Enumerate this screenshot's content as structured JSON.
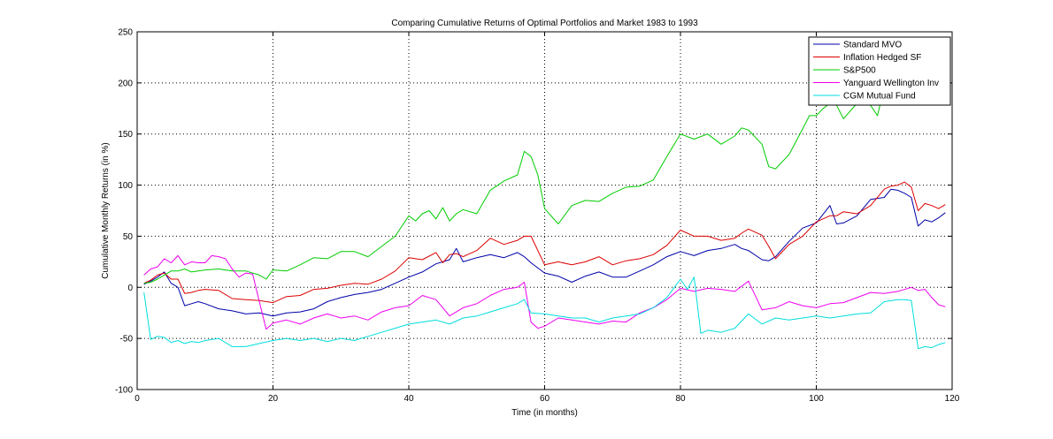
{
  "chart_data": {
    "type": "line",
    "title": "Comparing Cumulative Returns of Optimal Portfolios and Market 1983 to 1993",
    "xlabel": "Time (in months)",
    "ylabel": "Cumulative Monthly Returns (in %)",
    "xlim": [
      0,
      120
    ],
    "ylim": [
      -100,
      250
    ],
    "xticks": [
      0,
      20,
      40,
      60,
      80,
      100,
      120
    ],
    "yticks": [
      -100,
      -50,
      0,
      50,
      100,
      150,
      200,
      250
    ],
    "grid": true,
    "legend_position": "top-right",
    "series": [
      {
        "name": "Standard MVO",
        "color": "#0000aa",
        "x": [
          1,
          2,
          3,
          4,
          5,
          6,
          7,
          8,
          9,
          10,
          12,
          14,
          16,
          18,
          20,
          22,
          24,
          26,
          28,
          30,
          32,
          34,
          36,
          38,
          40,
          42,
          44,
          45,
          46,
          47,
          48,
          50,
          52,
          54,
          56,
          57,
          58,
          60,
          62,
          64,
          66,
          68,
          70,
          72,
          74,
          76,
          78,
          80,
          82,
          84,
          86,
          88,
          89,
          90,
          92,
          93,
          94,
          96,
          98,
          100,
          102,
          103,
          104,
          106,
          108,
          110,
          111,
          112,
          113,
          114,
          115,
          116,
          117,
          118,
          119
        ],
        "values": [
          3,
          6,
          10,
          15,
          4,
          0,
          -18,
          -16,
          -14,
          -16,
          -21,
          -23,
          -26,
          -25,
          -28,
          -25,
          -24,
          -21,
          -14,
          -10,
          -7,
          -5,
          -2,
          4,
          10,
          15,
          23,
          25,
          27,
          38,
          25,
          29,
          32,
          29,
          34,
          30,
          24,
          14,
          11,
          5,
          11,
          15,
          10,
          10,
          16,
          22,
          30,
          35,
          31,
          36,
          38,
          42,
          38,
          36,
          27,
          26,
          30,
          45,
          58,
          63,
          80,
          62,
          63,
          70,
          86,
          88,
          96,
          95,
          92,
          88,
          60,
          66,
          64,
          68,
          73
        ]
      },
      {
        "name": "Inflation Hedged SF",
        "color": "#dd0000",
        "x": [
          1,
          2,
          3,
          4,
          5,
          6,
          7,
          8,
          9,
          10,
          12,
          14,
          16,
          18,
          20,
          22,
          24,
          26,
          28,
          30,
          32,
          34,
          36,
          38,
          40,
          42,
          44,
          45,
          46,
          47,
          48,
          50,
          52,
          54,
          56,
          57,
          58,
          60,
          62,
          64,
          66,
          68,
          70,
          72,
          74,
          76,
          78,
          80,
          82,
          84,
          86,
          88,
          89,
          90,
          92,
          93,
          94,
          96,
          98,
          100,
          102,
          103,
          104,
          106,
          108,
          110,
          111,
          112,
          113,
          114,
          115,
          116,
          117,
          118,
          119
        ],
        "values": [
          4,
          7,
          12,
          14,
          8,
          8,
          -6,
          -5,
          -3,
          -2,
          -3,
          -11,
          -12,
          -13,
          -15,
          -9,
          -8,
          -2,
          -1,
          2,
          4,
          3,
          8,
          16,
          29,
          27,
          34,
          24,
          32,
          33,
          30,
          36,
          48,
          42,
          46,
          50,
          50,
          22,
          25,
          22,
          25,
          30,
          22,
          26,
          28,
          32,
          41,
          56,
          50,
          50,
          46,
          48,
          53,
          57,
          51,
          40,
          28,
          42,
          50,
          64,
          70,
          70,
          74,
          72,
          80,
          96,
          99,
          100,
          103,
          98,
          75,
          82,
          80,
          77,
          81
        ]
      },
      {
        "name": "S&P500",
        "color": "#00cc00",
        "x": [
          1,
          2,
          3,
          4,
          5,
          6,
          7,
          8,
          9,
          10,
          12,
          14,
          16,
          18,
          19,
          20,
          22,
          24,
          26,
          28,
          30,
          32,
          34,
          36,
          38,
          40,
          41,
          42,
          43,
          44,
          45,
          46,
          47,
          48,
          50,
          52,
          54,
          56,
          57,
          58,
          59,
          60,
          62,
          64,
          66,
          68,
          70,
          72,
          74,
          76,
          78,
          80,
          82,
          84,
          86,
          88,
          89,
          90,
          92,
          93,
          94,
          96,
          98,
          99,
          100,
          101,
          102,
          103,
          104,
          106,
          108,
          109,
          110,
          112
        ],
        "values": [
          4,
          5,
          8,
          12,
          16,
          16,
          18,
          15,
          16,
          17,
          18,
          16,
          16,
          12,
          8,
          17,
          16,
          22,
          29,
          28,
          35,
          35,
          30,
          40,
          50,
          70,
          65,
          72,
          75,
          67,
          78,
          65,
          72,
          76,
          72,
          95,
          104,
          110,
          133,
          128,
          110,
          77,
          62,
          80,
          85,
          84,
          92,
          98,
          99,
          105,
          128,
          150,
          145,
          150,
          140,
          148,
          156,
          154,
          140,
          118,
          116,
          130,
          155,
          168,
          168,
          175,
          180,
          178,
          165,
          180,
          178,
          168,
          195,
          200
        ]
      },
      {
        "name": "Yanguard Wellington Inv",
        "color": "#ee00ee",
        "x": [
          1,
          2,
          3,
          4,
          5,
          6,
          7,
          8,
          9,
          10,
          11,
          12,
          13,
          14,
          15,
          16,
          17,
          18,
          19,
          20,
          22,
          24,
          26,
          28,
          30,
          32,
          34,
          36,
          38,
          40,
          42,
          44,
          46,
          48,
          50,
          52,
          54,
          56,
          57,
          58,
          59,
          60,
          62,
          64,
          66,
          68,
          70,
          72,
          74,
          76,
          78,
          80,
          82,
          84,
          86,
          88,
          90,
          92,
          94,
          96,
          98,
          100,
          102,
          104,
          106,
          108,
          110,
          112,
          114,
          115,
          116,
          117,
          118,
          119
        ],
        "values": [
          12,
          18,
          20,
          28,
          24,
          31,
          22,
          25,
          24,
          24,
          31,
          30,
          28,
          18,
          10,
          14,
          13,
          -14,
          -41,
          -35,
          -32,
          -36,
          -30,
          -26,
          -30,
          -28,
          -32,
          -24,
          -20,
          -18,
          -8,
          -12,
          -28,
          -20,
          -16,
          -8,
          -2,
          0,
          5,
          -34,
          -40,
          -38,
          -30,
          -32,
          -34,
          -36,
          -33,
          -34,
          -25,
          -20,
          -12,
          -1,
          -4,
          -1,
          -2,
          -4,
          6,
          -22,
          -20,
          -14,
          -18,
          -20,
          -16,
          -15,
          -10,
          -5,
          -6,
          -4,
          0,
          -3,
          -2,
          -10,
          -17,
          -19
        ]
      },
      {
        "name": "CGM Mutual Fund",
        "color": "#00dddd",
        "x": [
          1,
          2,
          3,
          4,
          5,
          6,
          7,
          8,
          9,
          10,
          12,
          14,
          16,
          18,
          20,
          22,
          24,
          26,
          28,
          30,
          32,
          34,
          36,
          38,
          40,
          42,
          44,
          46,
          48,
          50,
          52,
          54,
          56,
          57,
          58,
          60,
          62,
          64,
          66,
          68,
          70,
          72,
          74,
          76,
          78,
          80,
          81,
          82,
          83,
          84,
          86,
          88,
          90,
          92,
          94,
          96,
          98,
          100,
          102,
          104,
          106,
          108,
          110,
          112,
          113,
          114,
          115,
          116,
          117,
          118,
          119
        ],
        "values": [
          -5,
          -51,
          -48,
          -49,
          -54,
          -52,
          -55,
          -53,
          -54,
          -52,
          -50,
          -58,
          -58,
          -55,
          -52,
          -50,
          -52,
          -50,
          -53,
          -50,
          -52,
          -48,
          -44,
          -40,
          -36,
          -34,
          -32,
          -36,
          -30,
          -28,
          -24,
          -20,
          -16,
          -12,
          -25,
          -26,
          -28,
          -30,
          -30,
          -34,
          -30,
          -28,
          -26,
          -20,
          -10,
          8,
          -2,
          10,
          -45,
          -42,
          -44,
          -40,
          -26,
          -36,
          -30,
          -32,
          -30,
          -28,
          -30,
          -28,
          -26,
          -25,
          -14,
          -12,
          -12,
          -13,
          -60,
          -58,
          -59,
          -56,
          -54
        ]
      }
    ]
  }
}
